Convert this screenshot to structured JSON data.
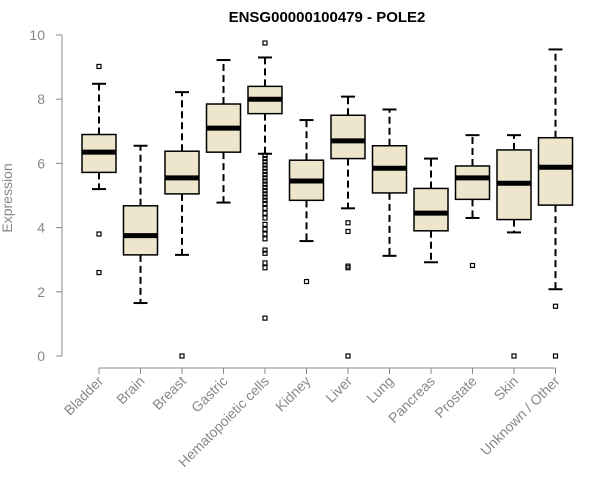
{
  "chart_data": {
    "type": "boxplot",
    "title": "ENSG00000100479 - POLE2",
    "xlabel": "",
    "ylabel": "Expression",
    "ylim": [
      0,
      10
    ],
    "yticks": [
      0,
      2,
      4,
      6,
      8,
      10
    ],
    "grid": false,
    "legend": "none",
    "categories": [
      "Bladder",
      "Brain",
      "Breast",
      "Gastric",
      "Hematopoietic cells",
      "Kidney",
      "Liver",
      "Lung",
      "Pancreas",
      "Prostate",
      "Skin",
      "Unknown / Other"
    ],
    "boxes": [
      {
        "name": "Bladder",
        "whisker_low": 5.2,
        "q1": 5.72,
        "median": 6.35,
        "q3": 6.9,
        "whisker_high": 8.48,
        "outliers": [
          9.02,
          3.8,
          2.6
        ]
      },
      {
        "name": "Brain",
        "whisker_low": 1.65,
        "q1": 3.15,
        "median": 3.75,
        "q3": 4.68,
        "whisker_high": 6.55,
        "outliers": []
      },
      {
        "name": "Breast",
        "whisker_low": 3.15,
        "q1": 5.05,
        "median": 5.55,
        "q3": 6.38,
        "whisker_high": 8.22,
        "outliers": [
          0.0
        ]
      },
      {
        "name": "Gastric",
        "whisker_low": 4.78,
        "q1": 6.35,
        "median": 7.1,
        "q3": 7.85,
        "whisker_high": 9.22,
        "outliers": []
      },
      {
        "name": "Hematopoietic cells",
        "whisker_low": 6.3,
        "q1": 7.55,
        "median": 8.0,
        "q3": 8.4,
        "whisker_high": 9.3,
        "outliers": [
          9.75,
          6.25,
          6.15,
          6.05,
          5.95,
          5.85,
          5.75,
          5.65,
          5.55,
          5.45,
          5.35,
          5.25,
          5.15,
          5.05,
          4.95,
          4.85,
          4.75,
          4.6,
          4.45,
          4.3,
          4.1,
          3.95,
          3.8,
          3.65,
          3.3,
          3.2,
          2.9,
          2.75,
          1.18
        ]
      },
      {
        "name": "Kidney",
        "whisker_low": 3.58,
        "q1": 4.85,
        "median": 5.45,
        "q3": 6.1,
        "whisker_high": 7.35,
        "outliers": [
          2.32
        ]
      },
      {
        "name": "Liver",
        "whisker_low": 4.6,
        "q1": 6.15,
        "median": 6.7,
        "q3": 7.5,
        "whisker_high": 8.08,
        "outliers": [
          4.15,
          3.88,
          2.8,
          2.75,
          0.0
        ]
      },
      {
        "name": "Lung",
        "whisker_low": 3.12,
        "q1": 5.08,
        "median": 5.85,
        "q3": 6.55,
        "whisker_high": 7.68,
        "outliers": []
      },
      {
        "name": "Pancreas",
        "whisker_low": 2.92,
        "q1": 3.9,
        "median": 4.45,
        "q3": 5.22,
        "whisker_high": 6.15,
        "outliers": []
      },
      {
        "name": "Prostate",
        "whisker_low": 4.3,
        "q1": 4.88,
        "median": 5.55,
        "q3": 5.92,
        "whisker_high": 6.88,
        "outliers": [
          2.82
        ]
      },
      {
        "name": "Skin",
        "whisker_low": 3.85,
        "q1": 4.25,
        "median": 5.38,
        "q3": 6.42,
        "whisker_high": 6.88,
        "outliers": [
          0.0
        ]
      },
      {
        "name": "Unknown / Other",
        "whisker_low": 2.08,
        "q1": 4.7,
        "median": 5.88,
        "q3": 6.8,
        "whisker_high": 9.55,
        "outliers": [
          1.55,
          0.0
        ]
      }
    ],
    "colors": {
      "box_fill": "#ede6cc",
      "box_stroke": "#000000",
      "axis": "#888888",
      "tick_text": "#888888",
      "title": "#000000"
    }
  }
}
